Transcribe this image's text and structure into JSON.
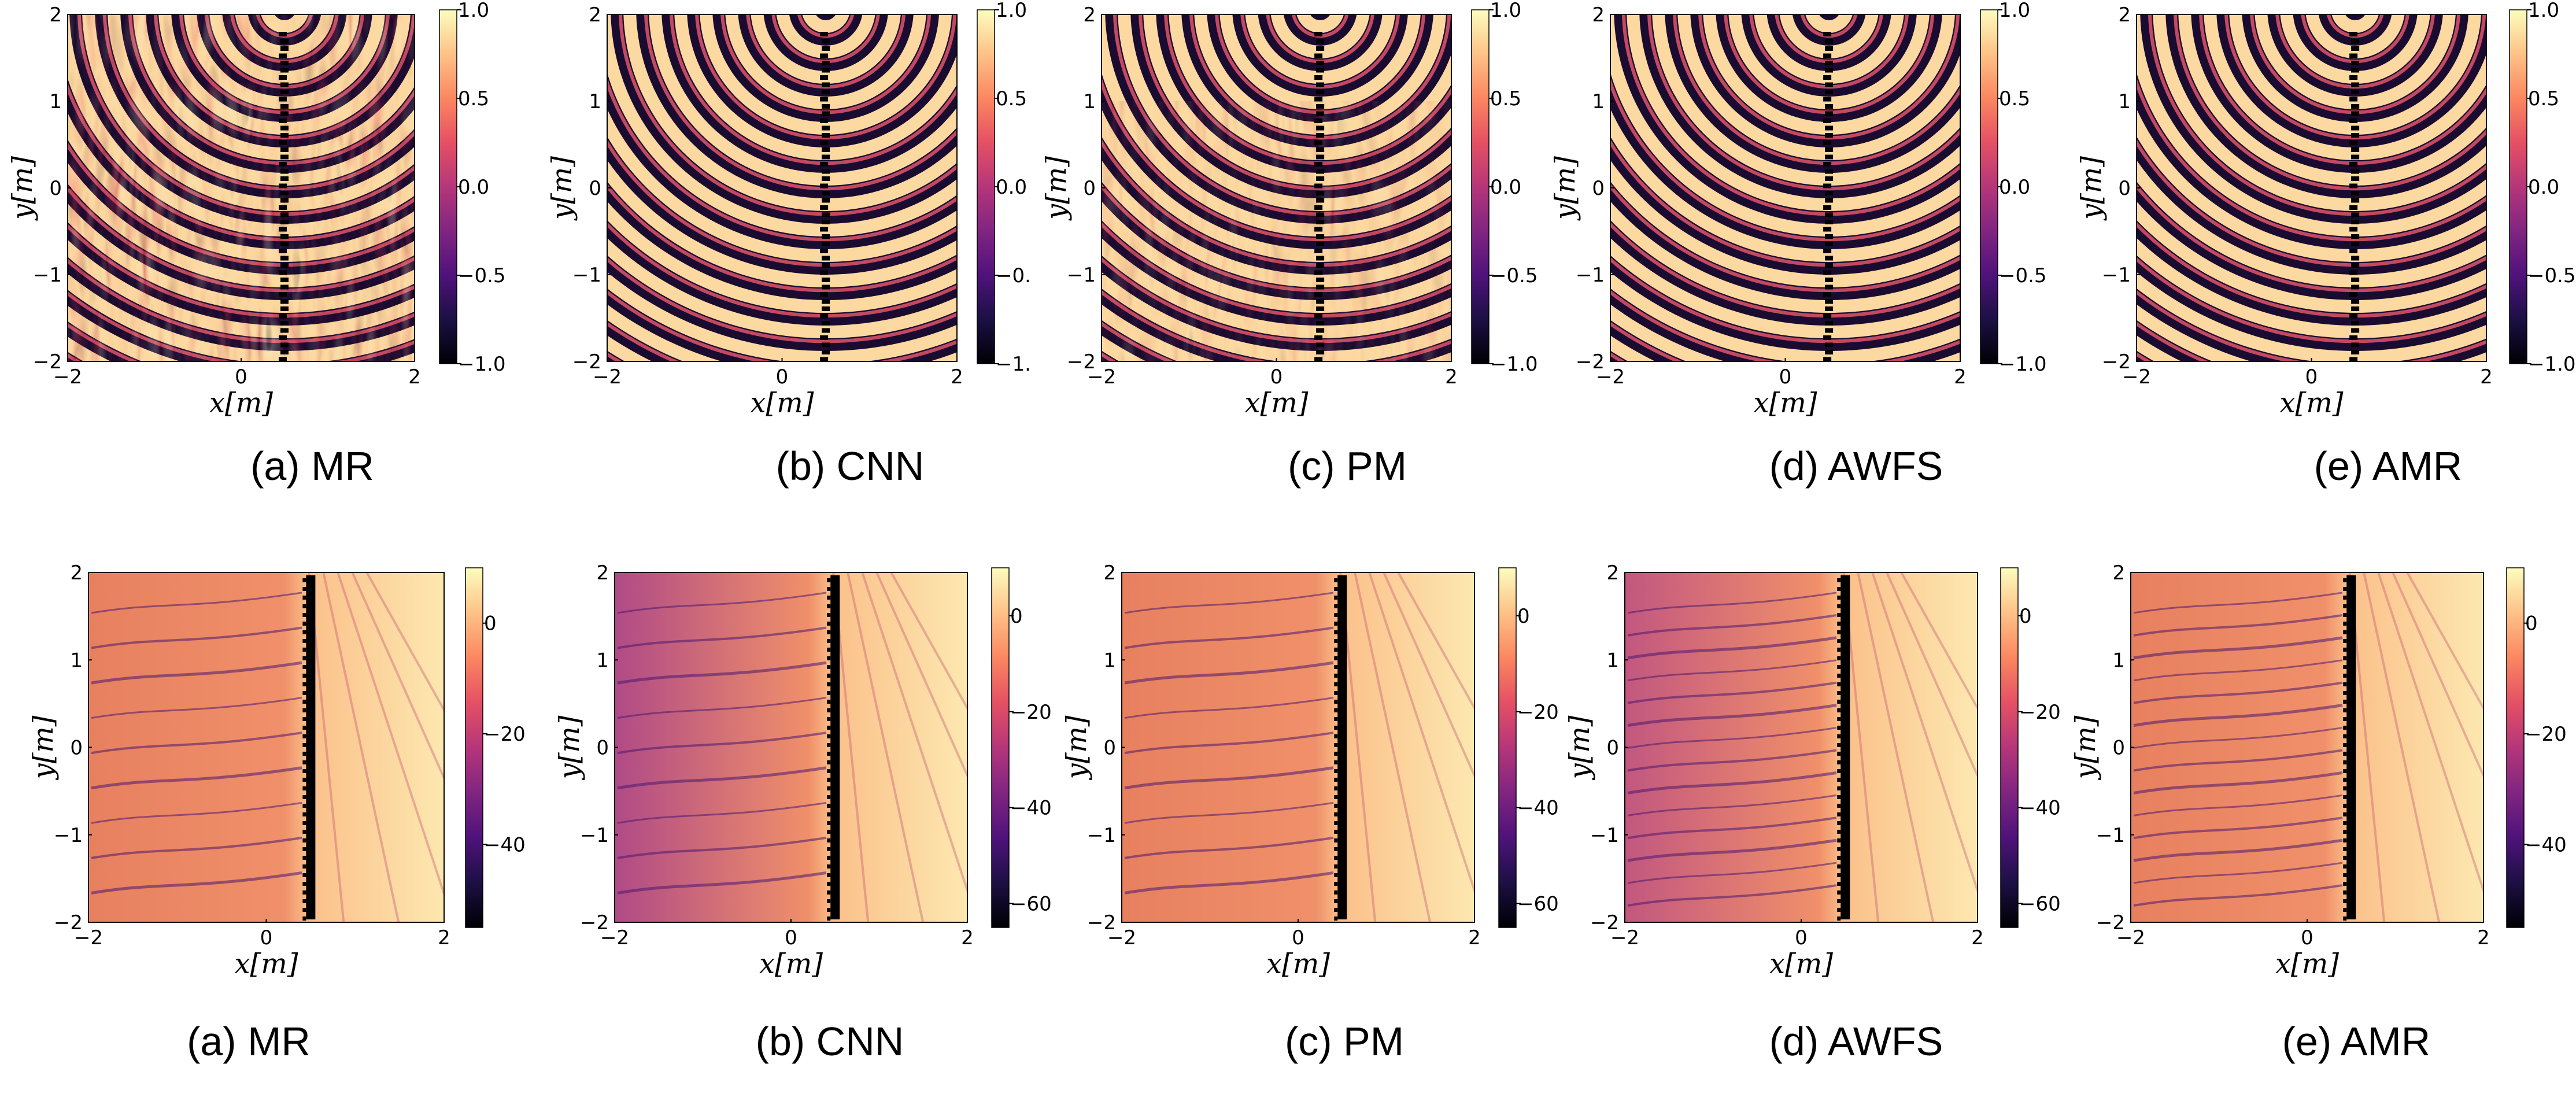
{
  "figure": {
    "rows": [
      {
        "row_id": "top",
        "panels": [
          {
            "caption": "(a) MR"
          },
          {
            "caption": "(b) CNN"
          },
          {
            "caption": "(c) PM"
          },
          {
            "caption": "(d) AWFS"
          },
          {
            "caption": "(e) AMR"
          }
        ]
      },
      {
        "row_id": "bottom",
        "panels": [
          {
            "caption": "(a) MR"
          },
          {
            "caption": "(b) CNN"
          },
          {
            "caption": "(c) PM"
          },
          {
            "caption": "(d) AWFS"
          },
          {
            "caption": "(e) AMR"
          }
        ]
      }
    ]
  },
  "chart_data": [
    {
      "type": "heatmap",
      "panel": "(a) MR",
      "row": "top",
      "xlabel": "x[m]",
      "ylabel": "y[m]",
      "xlim": [
        -2,
        2
      ],
      "ylim": [
        -2,
        2
      ],
      "x_ticks": [
        "−2",
        "0",
        "2"
      ],
      "y_ticks": [
        "−2",
        "−1",
        "0",
        "1",
        "2"
      ],
      "colorbar": {
        "range": [
          -1.0,
          1.0
        ],
        "ticks": [
          "1.0",
          "0.5",
          "0.0",
          "−0.5",
          "−1.0"
        ],
        "colormap": "magma"
      }
    },
    {
      "type": "heatmap",
      "panel": "(b) CNN",
      "row": "top",
      "xlabel": "x[m]",
      "ylabel": "y[m]",
      "xlim": [
        -2,
        2
      ],
      "ylim": [
        -2,
        2
      ],
      "x_ticks": [
        "−2",
        "0",
        "2"
      ],
      "y_ticks": [
        "−2",
        "−1",
        "0",
        "1",
        "2"
      ],
      "colorbar": {
        "range": [
          -1.0,
          1.0
        ],
        "ticks": [
          "1.0",
          "0.5",
          "0.0",
          "−0.",
          "−1."
        ],
        "colormap": "magma"
      }
    },
    {
      "type": "heatmap",
      "panel": "(c) PM",
      "row": "top",
      "xlabel": "x[m]",
      "ylabel": "y[m]",
      "xlim": [
        -2,
        2
      ],
      "ylim": [
        -2,
        2
      ],
      "x_ticks": [
        "−2",
        "0",
        "2"
      ],
      "y_ticks": [
        "−2",
        "−1",
        "0",
        "1",
        "2"
      ],
      "colorbar": {
        "range": [
          -1.0,
          1.0
        ],
        "ticks": [
          "1.0",
          "0.5",
          "0.0",
          "−0.5",
          "−1.0"
        ],
        "colormap": "magma"
      }
    },
    {
      "type": "heatmap",
      "panel": "(d) AWFS",
      "row": "top",
      "xlabel": "x[m]",
      "ylabel": "y[m]",
      "xlim": [
        -2,
        2
      ],
      "ylim": [
        -2,
        2
      ],
      "x_ticks": [
        "−2",
        "0",
        "2"
      ],
      "y_ticks": [
        "−2",
        "−1",
        "0",
        "1",
        "2"
      ],
      "colorbar": {
        "range": [
          -1.0,
          1.0
        ],
        "ticks": [
          "1.0",
          "0.5",
          "0.0",
          "−0.5",
          "−1.0"
        ],
        "colormap": "magma"
      }
    },
    {
      "type": "heatmap",
      "panel": "(e) AMR",
      "row": "top",
      "xlabel": "x[m]",
      "ylabel": "y[m]",
      "xlim": [
        -2,
        2
      ],
      "ylim": [
        -2,
        2
      ],
      "x_ticks": [
        "−2",
        "0",
        "2"
      ],
      "y_ticks": [
        "−2",
        "−1",
        "0",
        "1",
        "2"
      ],
      "colorbar": {
        "range": [
          -1.0,
          1.0
        ],
        "ticks": [
          "1.0",
          "0.5",
          "0.0",
          "−0.5",
          "−1.0"
        ],
        "colormap": "magma"
      }
    },
    {
      "type": "heatmap",
      "panel": "(a) MR",
      "row": "bottom",
      "xlabel": "x[m]",
      "ylabel": "y[m]",
      "xlim": [
        -2,
        2
      ],
      "ylim": [
        -2,
        2
      ],
      "x_ticks": [
        "−2",
        "0",
        "2"
      ],
      "y_ticks": [
        "−2",
        "−1",
        "0",
        "1",
        "2"
      ],
      "colorbar": {
        "range": [
          -55,
          10
        ],
        "ticks": [
          "0",
          "−20",
          "−40"
        ],
        "colormap": "magma"
      }
    },
    {
      "type": "heatmap",
      "panel": "(b) CNN",
      "row": "bottom",
      "xlabel": "x[m]",
      "ylabel": "y[m]",
      "xlim": [
        -2,
        2
      ],
      "ylim": [
        -2,
        2
      ],
      "x_ticks": [
        "−2",
        "0",
        "2"
      ],
      "y_ticks": [
        "−2",
        "−1",
        "0",
        "1",
        "2"
      ],
      "colorbar": {
        "range": [
          -65,
          10
        ],
        "ticks": [
          "0",
          "−20",
          "−40",
          "−60"
        ],
        "colormap": "magma"
      }
    },
    {
      "type": "heatmap",
      "panel": "(c) PM",
      "row": "bottom",
      "xlabel": "x[m]",
      "ylabel": "y[m]",
      "xlim": [
        -2,
        2
      ],
      "ylim": [
        -2,
        2
      ],
      "x_ticks": [
        "−2",
        "0",
        "2"
      ],
      "y_ticks": [
        "−2",
        "−1",
        "0",
        "1",
        "2"
      ],
      "colorbar": {
        "range": [
          -65,
          10
        ],
        "ticks": [
          "0",
          "−20",
          "−40",
          "−60"
        ],
        "colormap": "magma"
      }
    },
    {
      "type": "heatmap",
      "panel": "(d) AWFS",
      "row": "bottom",
      "xlabel": "x[m]",
      "ylabel": "y[m]",
      "xlim": [
        -2,
        2
      ],
      "ylim": [
        -2,
        2
      ],
      "x_ticks": [
        "−2",
        "0",
        "2"
      ],
      "y_ticks": [
        "−2",
        "−1",
        "0",
        "1",
        "2"
      ],
      "colorbar": {
        "range": [
          -65,
          10
        ],
        "ticks": [
          "0",
          "−20",
          "−40",
          "−60"
        ],
        "colormap": "magma"
      }
    },
    {
      "type": "heatmap",
      "panel": "(e) AMR",
      "row": "bottom",
      "xlabel": "x[m]",
      "ylabel": "y[m]",
      "xlim": [
        -2,
        2
      ],
      "ylim": [
        -2,
        2
      ],
      "x_ticks": [
        "−2",
        "0",
        "2"
      ],
      "y_ticks": [
        "−2",
        "−1",
        "0",
        "1",
        "2"
      ],
      "colorbar": {
        "range": [
          -55,
          10
        ],
        "ticks": [
          "0",
          "−20",
          "−40"
        ],
        "colormap": "magma"
      }
    }
  ],
  "colors": {
    "magma": [
      "#000004",
      "#1c1044",
      "#4f127b",
      "#812581",
      "#b5367a",
      "#e55064",
      "#fb8761",
      "#fec287",
      "#fcfdbf"
    ]
  }
}
